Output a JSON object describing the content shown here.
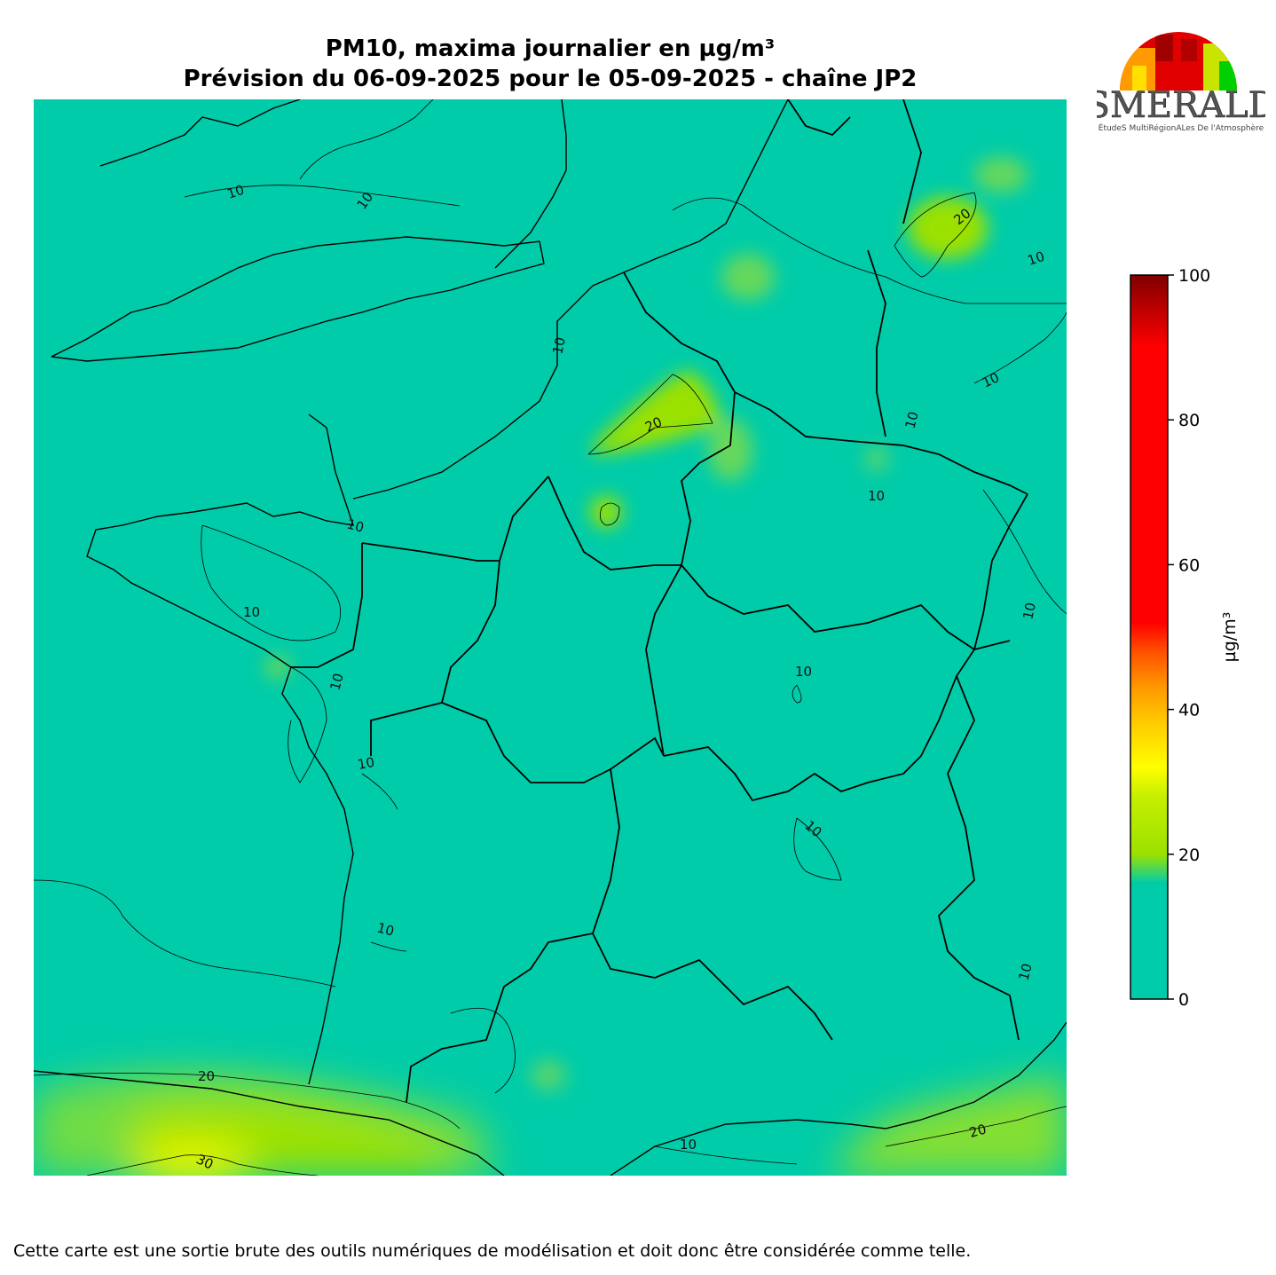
{
  "title": {
    "line1": "PM10, maxima journalier en µg/m³",
    "line2": "Prévision du 06-09-2025 pour le 05-09-2025 - chaîne JP2"
  },
  "logo": {
    "name": "ESMERALDA",
    "tagline": "ÉtudeS MultiRégionALes De l'Atmosphère"
  },
  "colorbar": {
    "unit": "µg/m³",
    "min": 0,
    "max": 100,
    "ticks": [
      "0",
      "20",
      "40",
      "60",
      "80",
      "100"
    ],
    "colors": {
      "low": "#00cca9",
      "green": "#9be100",
      "yellow": "#ffff00",
      "orange": "#ff9900",
      "red": "#ff0000",
      "darkred": "#800000"
    }
  },
  "map": {
    "background_color": "#00cca9",
    "contour_labels": [
      "10",
      "10",
      "10",
      "20",
      "10",
      "10",
      "20",
      "10",
      "10",
      "10",
      "10",
      "10",
      "10",
      "10",
      "10",
      "10",
      "10",
      "10",
      "20",
      "30",
      "10",
      "20"
    ]
  },
  "footer": "Cette carte est une sortie brute des outils numériques de modélisation et doit donc être considérée comme telle."
}
